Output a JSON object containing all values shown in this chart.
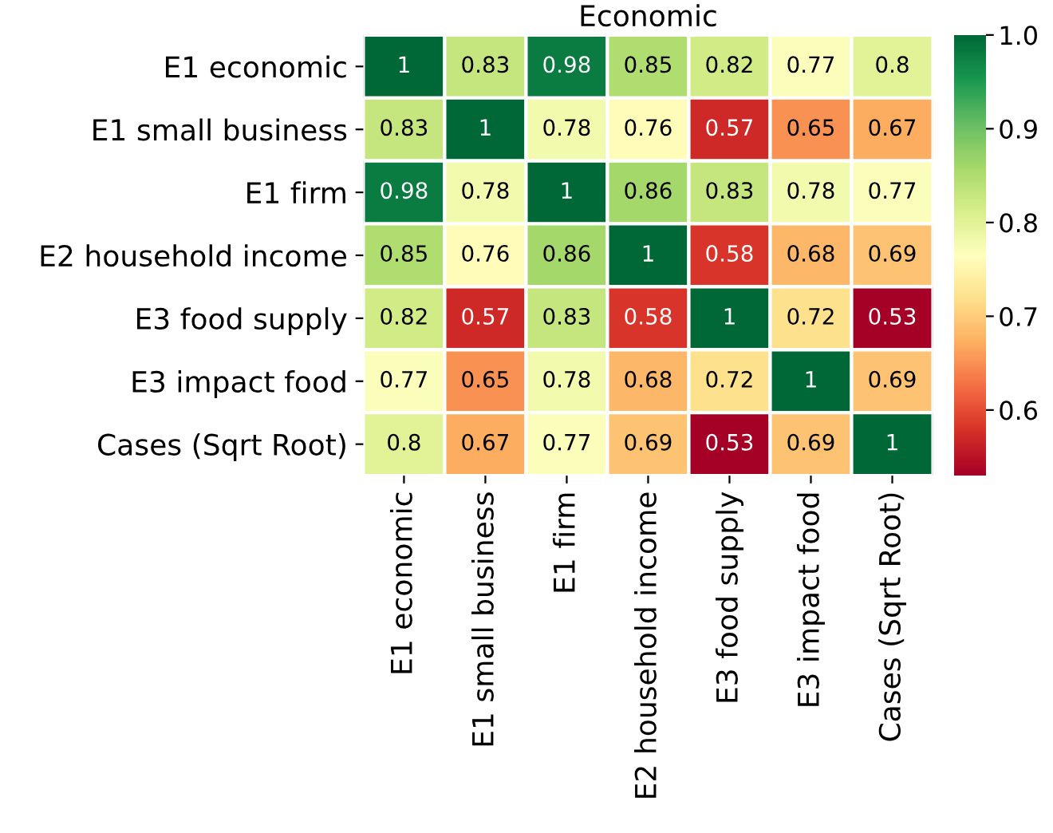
{
  "chart_data": {
    "type": "heatmap",
    "title": "Economic",
    "categories": [
      "E1 economic",
      "E1 small business",
      "E1 firm",
      "E2 household income",
      "E3 food supply",
      "E3 impact food",
      "Cases (Sqrt Root)"
    ],
    "y_categories": [
      "E1 economic",
      "E1 small business",
      "E1 firm",
      "E2 household income",
      "E3 food supply",
      "E3 impact food",
      "Cases (Sqrt Root)"
    ],
    "cells": [
      [
        1,
        0.83,
        0.98,
        0.85,
        0.82,
        0.77,
        0.8
      ],
      [
        0.83,
        1,
        0.78,
        0.76,
        0.57,
        0.65,
        0.67
      ],
      [
        0.98,
        0.78,
        1,
        0.86,
        0.83,
        0.78,
        0.77
      ],
      [
        0.85,
        0.76,
        0.86,
        1,
        0.58,
        0.68,
        0.69
      ],
      [
        0.82,
        0.57,
        0.83,
        0.58,
        1,
        0.72,
        0.53
      ],
      [
        0.77,
        0.65,
        0.78,
        0.68,
        0.72,
        1,
        0.69
      ],
      [
        0.8,
        0.67,
        0.77,
        0.69,
        0.53,
        0.69,
        1
      ]
    ],
    "clim": [
      0.53,
      1.0
    ],
    "cticks": [
      0.6,
      0.7,
      0.8,
      0.9,
      {
        "value": 1.0,
        "label": "1.0"
      }
    ],
    "data_labels": true
  }
}
